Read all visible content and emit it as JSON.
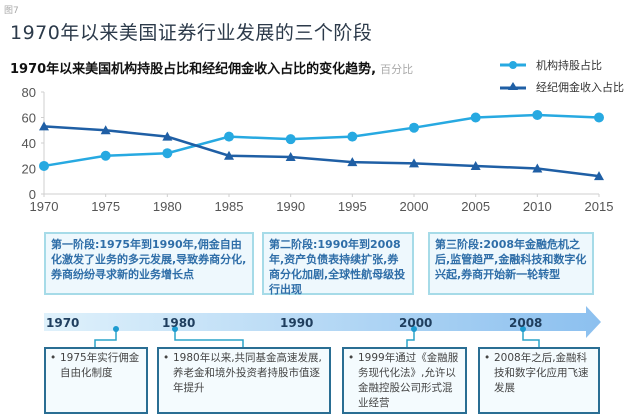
{
  "figure_label": "图7",
  "main_title": "1970年以来美国证券行业发展的三个阶段",
  "subtitle": "1970年以来美国机构持股占比和经纪佣金收入占比的变化趋势,",
  "subtitle_unit": "百分比",
  "legend": [
    {
      "label": "机构持股占比",
      "marker": "circle",
      "color": "#27a9e1"
    },
    {
      "label": "经纪佣金收入占比",
      "marker": "triangle",
      "color": "#1f5fa5"
    }
  ],
  "chart_data": {
    "type": "line",
    "title": "1970年以来美国机构持股占比和经纪佣金收入占比的变化趋势, 百分比",
    "xlabel": "",
    "ylabel": "百分比",
    "x": [
      1970,
      1975,
      1980,
      1985,
      1990,
      1995,
      2000,
      2005,
      2010,
      2015
    ],
    "ylim": [
      0,
      80
    ],
    "yticks": [
      0,
      20,
      40,
      60,
      80
    ],
    "grid": false,
    "legend_position": "top-right",
    "series": [
      {
        "name": "机构持股占比",
        "color": "#27a9e1",
        "marker": "circle",
        "values": [
          22,
          30,
          32,
          45,
          43,
          45,
          52,
          60,
          62,
          60
        ]
      },
      {
        "name": "经纪佣金收入占比",
        "color": "#1f5fa5",
        "marker": "triangle",
        "values": [
          53,
          50,
          45,
          30,
          29,
          25,
          24,
          22,
          20,
          14
        ]
      }
    ]
  },
  "stages": [
    {
      "text": "第一阶段:1975年到1990年,佣金自由化激发了业务的多元发展,导致券商分化,券商纷纷寻求新的业务增长点"
    },
    {
      "text": "第二阶段:1990年到2008年,资产负债表持续扩张,券商分化加剧,全球性航母级投行出现"
    },
    {
      "text": "第三阶段:2008年金融危机之后,监管趋严,金融科技和数字化兴起,券商开始新一轮转型"
    }
  ],
  "timeline": {
    "years": [
      "1970",
      "1980",
      "1990",
      "2000",
      "2008"
    ]
  },
  "events": [
    {
      "text": "1975年实行佣金自由化制度"
    },
    {
      "text": "1980年以来,共同基金高速发展,养老金和境外投资者持股市值逐年提升"
    },
    {
      "text": "1999年通过《金融服务现代化法》,允许以金融控股公司形式混业经营"
    },
    {
      "text": "2008年之后,金融科技和数字化应用飞速发展"
    }
  ]
}
